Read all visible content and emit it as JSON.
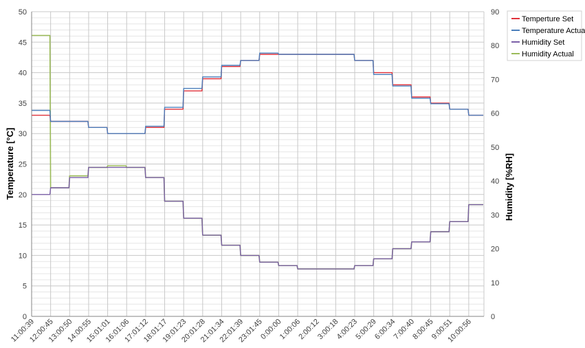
{
  "chart_data": {
    "type": "line",
    "ylabel": "Temperature [°C]",
    "y2label": "Humidity [%RH]",
    "ylim": [
      0,
      50
    ],
    "y2lim": [
      0,
      90
    ],
    "yticks": [
      0,
      5,
      10,
      15,
      20,
      25,
      30,
      35,
      40,
      45,
      50
    ],
    "y2ticks": [
      0,
      10,
      20,
      30,
      40,
      50,
      60,
      70,
      80,
      90
    ],
    "x_tick_labels": [
      "11:00:39",
      "12:00:45",
      "13:00:50",
      "14:00:55",
      "15:01:01",
      "16:01:06",
      "17:01:12",
      "18:01:17",
      "19:01:23",
      "20:01:28",
      "21:01:34",
      "22:01:39",
      "23:01:45",
      "0:00:00",
      "1:00:06",
      "2:00:12",
      "3:00:18",
      "4:00:23",
      "5:00:29",
      "6:00:34",
      "7:00:40",
      "8:00:45",
      "9:00:51",
      "10:00:56"
    ],
    "grid": true,
    "legend_position": "right",
    "series": [
      {
        "name": "Temperture Set",
        "axis": "left",
        "color": "#e0313a",
        "x": [
          "11:00:39",
          "12:00:45",
          "13:00:50",
          "14:00:55",
          "15:01:01",
          "16:01:06",
          "17:01:12",
          "18:01:17",
          "19:01:23",
          "20:01:28",
          "21:01:34",
          "22:01:39",
          "23:01:45",
          "0:00:00",
          "1:00:06",
          "2:00:12",
          "3:00:18",
          "4:00:23",
          "5:00:29",
          "6:00:34",
          "7:00:40",
          "8:00:45",
          "9:00:51",
          "10:00:56"
        ],
        "values": [
          33,
          32,
          32,
          31,
          30,
          30,
          31,
          34,
          37,
          39,
          41,
          42,
          43,
          43,
          43,
          43,
          43,
          42,
          40,
          38,
          36,
          35,
          34,
          33
        ]
      },
      {
        "name": "Temperature Actual",
        "axis": "left",
        "color": "#4a7ebb",
        "x": [
          "11:00:39",
          "12:00:45",
          "13:00:50",
          "14:00:55",
          "15:01:01",
          "16:01:06",
          "17:01:12",
          "18:01:17",
          "19:01:23",
          "20:01:28",
          "21:01:34",
          "22:01:39",
          "23:01:45",
          "0:00:00",
          "1:00:06",
          "2:00:12",
          "3:00:18",
          "4:00:23",
          "5:00:29",
          "6:00:34",
          "7:00:40",
          "8:00:45",
          "9:00:51",
          "10:00:56"
        ],
        "values": [
          33.8,
          32,
          32,
          31,
          30,
          30,
          31.2,
          34.3,
          37.4,
          39.3,
          41.2,
          42,
          43.2,
          43,
          43,
          43,
          43,
          42,
          39.7,
          37.8,
          35.8,
          34.9,
          34,
          33
        ]
      },
      {
        "name": "Humidity Set",
        "axis": "right",
        "color": "#7a5fa7",
        "x": [
          "11:00:39",
          "12:00:45",
          "13:00:50",
          "14:00:55",
          "15:01:01",
          "16:01:06",
          "17:01:12",
          "18:01:17",
          "19:01:23",
          "20:01:28",
          "21:01:34",
          "22:01:39",
          "23:01:45",
          "0:00:00",
          "1:00:06",
          "2:00:12",
          "3:00:18",
          "4:00:23",
          "5:00:29",
          "6:00:34",
          "7:00:40",
          "8:00:45",
          "9:00:51",
          "10:00:56"
        ],
        "values": [
          36,
          38,
          41,
          44,
          44,
          44,
          41,
          34,
          29,
          24,
          21,
          18,
          16,
          15,
          14,
          14,
          14,
          15,
          17,
          20,
          22,
          25,
          28,
          33
        ]
      },
      {
        "name": "Humidity Actual",
        "axis": "right",
        "color": "#9bbb59",
        "x": [
          "11:00:39",
          "12:00:45",
          "13:00:50",
          "14:00:55",
          "15:01:01",
          "16:01:06",
          "17:01:12",
          "18:01:17",
          "19:01:23",
          "20:01:28",
          "21:01:34",
          "22:01:39",
          "23:01:45",
          "0:00:00",
          "1:00:06",
          "2:00:12",
          "3:00:18",
          "4:00:23",
          "5:00:29",
          "6:00:34",
          "7:00:40",
          "8:00:45",
          "9:00:51",
          "10:00:56"
        ],
        "values": [
          83,
          38,
          41.5,
          44,
          44.5,
          44,
          41,
          34,
          29,
          24,
          21,
          18,
          16,
          15,
          14,
          14,
          14,
          15,
          17,
          20,
          22,
          25,
          28,
          33
        ]
      }
    ]
  }
}
